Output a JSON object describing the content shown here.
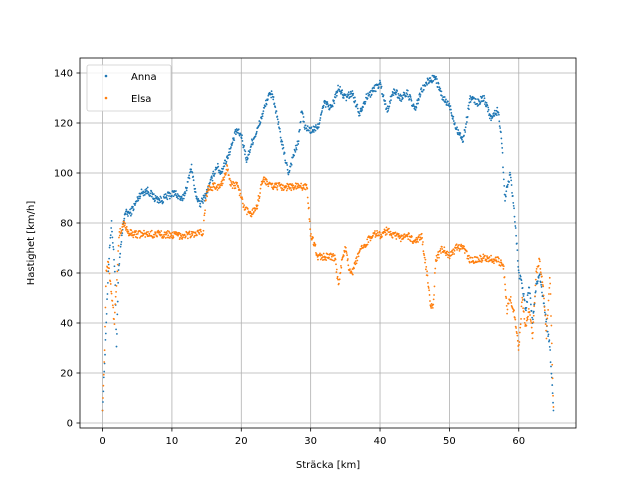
{
  "chart_data": {
    "type": "scatter",
    "xlabel": "Sträcka [km]",
    "ylabel": "Hastighet [km/h]",
    "xlim": [
      -3.25,
      68.25
    ],
    "ylim": [
      -2,
      146
    ],
    "xticks": [
      0,
      10,
      20,
      30,
      40,
      50,
      60
    ],
    "yticks": [
      0,
      20,
      40,
      60,
      80,
      100,
      120,
      140
    ],
    "grid": true,
    "legend_position": "top-left",
    "series": [
      {
        "name": "Anna",
        "color": "#1f77b4",
        "profile": [
          [
            0.0,
            5
          ],
          [
            0.3,
            25
          ],
          [
            0.6,
            45
          ],
          [
            1.0,
            70
          ],
          [
            1.3,
            80
          ],
          [
            1.8,
            60
          ],
          [
            2.0,
            30
          ],
          [
            2.3,
            60
          ],
          [
            2.8,
            75
          ],
          [
            3.2,
            84
          ],
          [
            4.0,
            84
          ],
          [
            4.8,
            88
          ],
          [
            5.5,
            92
          ],
          [
            6.5,
            93
          ],
          [
            7.5,
            90
          ],
          [
            8.5,
            89
          ],
          [
            9.5,
            91
          ],
          [
            10.5,
            92
          ],
          [
            11.5,
            89
          ],
          [
            12.3,
            96
          ],
          [
            12.8,
            103
          ],
          [
            13.3,
            93
          ],
          [
            14.0,
            87
          ],
          [
            15.0,
            92
          ],
          [
            15.8,
            98
          ],
          [
            16.5,
            103
          ],
          [
            17.0,
            100
          ],
          [
            17.8,
            105
          ],
          [
            18.5,
            110
          ],
          [
            19.3,
            117
          ],
          [
            20.0,
            115
          ],
          [
            20.8,
            105
          ],
          [
            21.5,
            112
          ],
          [
            22.3,
            117
          ],
          [
            23.0,
            123
          ],
          [
            23.8,
            130
          ],
          [
            24.5,
            132
          ],
          [
            25.3,
            120
          ],
          [
            26.0,
            110
          ],
          [
            26.8,
            100
          ],
          [
            27.5,
            107
          ],
          [
            28.2,
            112
          ],
          [
            28.7,
            125
          ],
          [
            29.2,
            118
          ],
          [
            30.0,
            117
          ],
          [
            31.0,
            118
          ],
          [
            32.0,
            128
          ],
          [
            33.0,
            126
          ],
          [
            34.0,
            134
          ],
          [
            35.0,
            130
          ],
          [
            36.0,
            132
          ],
          [
            37.0,
            124
          ],
          [
            38.0,
            130
          ],
          [
            39.0,
            133
          ],
          [
            40.0,
            136
          ],
          [
            41.0,
            125
          ],
          [
            42.0,
            133
          ],
          [
            43.0,
            130
          ],
          [
            44.0,
            132
          ],
          [
            45.0,
            125
          ],
          [
            46.0,
            133
          ],
          [
            47.0,
            137
          ],
          [
            48.0,
            138
          ],
          [
            49.0,
            130
          ],
          [
            50.0,
            127
          ],
          [
            51.0,
            118
          ],
          [
            52.0,
            113
          ],
          [
            53.0,
            130
          ],
          [
            54.0,
            128
          ],
          [
            55.0,
            130
          ],
          [
            56.0,
            122
          ],
          [
            57.0,
            125
          ],
          [
            57.5,
            115
          ],
          [
            58.0,
            90
          ],
          [
            58.8,
            100
          ],
          [
            59.5,
            80
          ],
          [
            60.0,
            60
          ],
          [
            60.5,
            55
          ],
          [
            61.0,
            45
          ],
          [
            61.5,
            55
          ],
          [
            62.0,
            40
          ],
          [
            62.5,
            55
          ],
          [
            63.0,
            60
          ],
          [
            63.5,
            50
          ],
          [
            64.0,
            40
          ],
          [
            64.5,
            30
          ],
          [
            65.0,
            5
          ]
        ]
      },
      {
        "name": "Elsa",
        "color": "#ff7f0e",
        "profile": [
          [
            0.0,
            5
          ],
          [
            0.3,
            30
          ],
          [
            0.5,
            60
          ],
          [
            0.8,
            65
          ],
          [
            1.2,
            55
          ],
          [
            1.7,
            40
          ],
          [
            2.0,
            55
          ],
          [
            2.4,
            75
          ],
          [
            3.0,
            80
          ],
          [
            3.8,
            76
          ],
          [
            5.0,
            75.5
          ],
          [
            7.0,
            75.5
          ],
          [
            9.0,
            75.5
          ],
          [
            11.0,
            75
          ],
          [
            13.0,
            75.5
          ],
          [
            14.5,
            76
          ],
          [
            14.9,
            90
          ],
          [
            15.3,
            94.5
          ],
          [
            17.0,
            94.5
          ],
          [
            17.5,
            98
          ],
          [
            18.0,
            103
          ],
          [
            18.5,
            95
          ],
          [
            19.5,
            95
          ],
          [
            20.0,
            90
          ],
          [
            20.5,
            85
          ],
          [
            21.5,
            84
          ],
          [
            22.3,
            87
          ],
          [
            22.8,
            94
          ],
          [
            23.3,
            98
          ],
          [
            24.0,
            95
          ],
          [
            26.0,
            94.5
          ],
          [
            28.0,
            94.5
          ],
          [
            29.5,
            94.5
          ],
          [
            30.0,
            75
          ],
          [
            30.5,
            72
          ],
          [
            31.0,
            66.5
          ],
          [
            33.0,
            66.5
          ],
          [
            33.5,
            66
          ],
          [
            34.0,
            55
          ],
          [
            34.5,
            65
          ],
          [
            35.0,
            70
          ],
          [
            35.5,
            62
          ],
          [
            36.0,
            60
          ],
          [
            37.0,
            68
          ],
          [
            38.0,
            72
          ],
          [
            39.0,
            76
          ],
          [
            40.0,
            75
          ],
          [
            41.0,
            77
          ],
          [
            42.0,
            75
          ],
          [
            43.0,
            74
          ],
          [
            44.0,
            75
          ],
          [
            45.0,
            72
          ],
          [
            46.0,
            75
          ],
          [
            46.5,
            65
          ],
          [
            47.0,
            55
          ],
          [
            47.3,
            47
          ],
          [
            47.7,
            47
          ],
          [
            48.0,
            65
          ],
          [
            49.0,
            70
          ],
          [
            50.0,
            66.5
          ],
          [
            51.0,
            70
          ],
          [
            52.0,
            70
          ],
          [
            53.0,
            65
          ],
          [
            55.0,
            66
          ],
          [
            57.0,
            65
          ],
          [
            57.8,
            63
          ],
          [
            58.3,
            45
          ],
          [
            58.8,
            50
          ],
          [
            59.3,
            45
          ],
          [
            60.0,
            30
          ],
          [
            60.5,
            50
          ],
          [
            61.0,
            38
          ],
          [
            61.5,
            45
          ],
          [
            62.0,
            35
          ],
          [
            62.5,
            60
          ],
          [
            63.0,
            65
          ],
          [
            63.5,
            55
          ],
          [
            64.0,
            35
          ],
          [
            64.5,
            60
          ],
          [
            65.0,
            5
          ]
        ]
      }
    ]
  }
}
